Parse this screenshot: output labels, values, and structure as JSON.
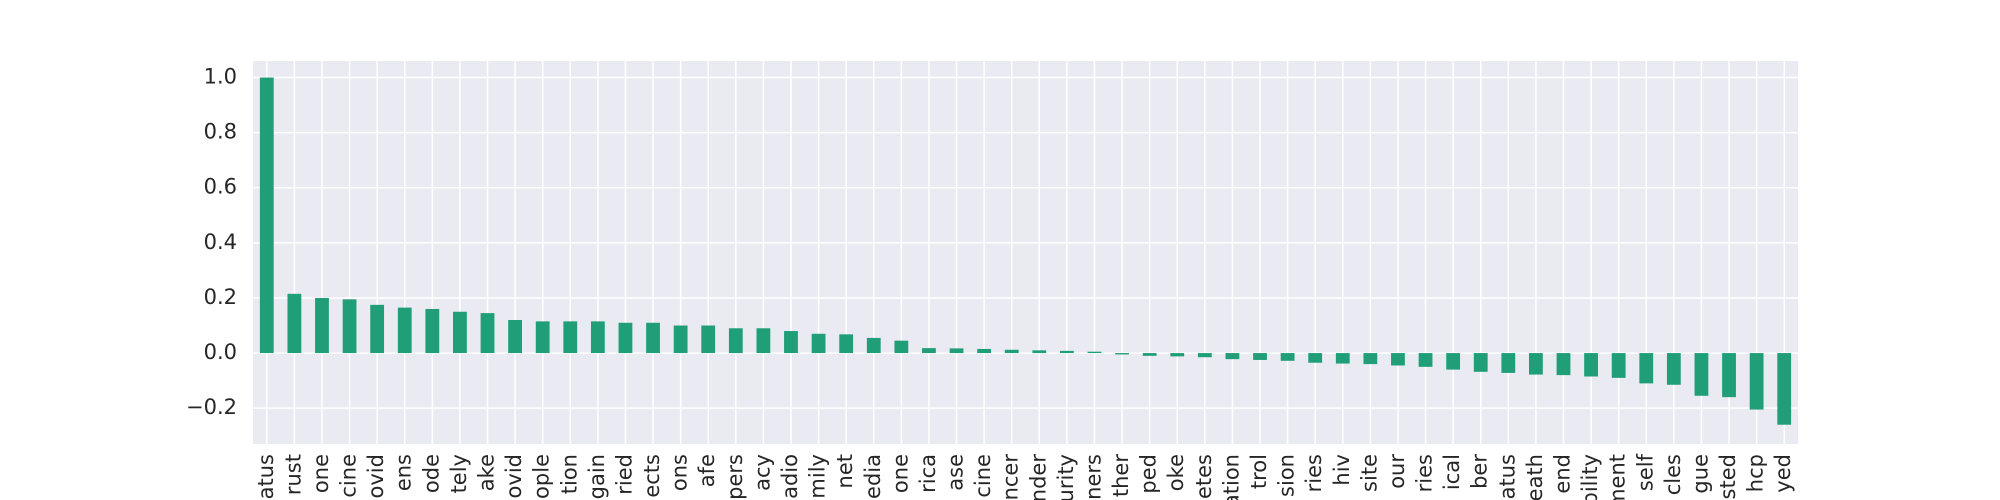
{
  "chart_data": {
    "type": "bar",
    "categories": [
      "atus",
      "rust",
      "one",
      "cine",
      "ovid",
      "ens",
      "ode",
      "tely",
      "ake",
      "ovid",
      "ople",
      "tion",
      "gain",
      "ried",
      "ects",
      "ons",
      "afe",
      "pers",
      "acy",
      "adio",
      "mily",
      "net",
      "edia",
      "one",
      "rica",
      "ase",
      "cine",
      "ncer",
      "nder",
      "urity",
      "ners",
      "ther",
      "ped",
      "oke",
      "etes",
      "ation",
      "trol",
      "sion",
      "ries",
      "hiv",
      "site",
      "our",
      "ries",
      "ical",
      "ber",
      "atus",
      "eath",
      "end",
      "bility",
      "ment",
      "self",
      "cles",
      "gue",
      "sted",
      "hcp",
      "yed"
    ],
    "values": [
      1.0,
      0.215,
      0.2,
      0.195,
      0.175,
      0.165,
      0.16,
      0.15,
      0.145,
      0.12,
      0.115,
      0.115,
      0.115,
      0.11,
      0.11,
      0.1,
      0.1,
      0.09,
      0.09,
      0.08,
      0.07,
      0.068,
      0.055,
      0.045,
      0.018,
      0.017,
      0.015,
      0.012,
      0.01,
      0.008,
      0.005,
      -0.005,
      -0.01,
      -0.012,
      -0.015,
      -0.022,
      -0.025,
      -0.028,
      -0.035,
      -0.038,
      -0.04,
      -0.045,
      -0.05,
      -0.06,
      -0.068,
      -0.072,
      -0.078,
      -0.08,
      -0.085,
      -0.09,
      -0.11,
      -0.115,
      -0.155,
      -0.16,
      -0.205,
      -0.26
    ],
    "color": "#1f9e77",
    "ylim": [
      -0.33,
      1.06
    ],
    "yticks": [
      {
        "value": -0.2,
        "label": "−0.2"
      },
      {
        "value": 0,
        "label": "0.0"
      },
      {
        "value": 0.2,
        "label": "0.2"
      },
      {
        "value": 0.4,
        "label": "0.4"
      },
      {
        "value": 0.6,
        "label": "0.6"
      },
      {
        "value": 0.8,
        "label": "0.8"
      },
      {
        "value": 1.0,
        "label": "1.0"
      }
    ],
    "grid": true
  }
}
